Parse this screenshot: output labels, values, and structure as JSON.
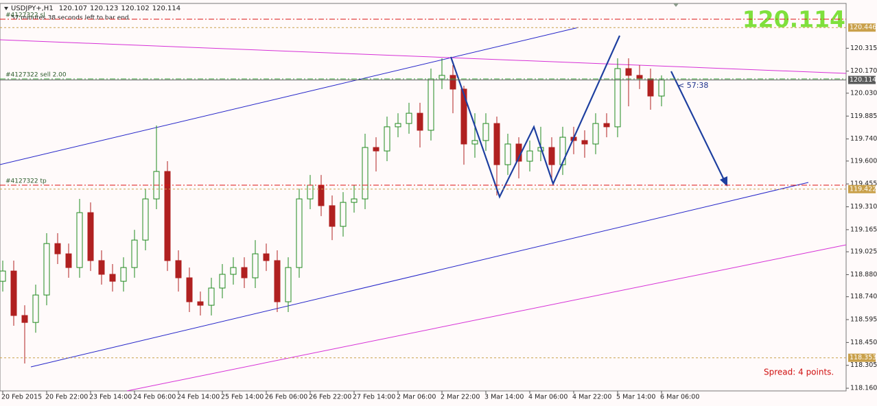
{
  "chart_data": {
    "type": "candlestick",
    "symbol": "USDJPY+,H1",
    "ohlc": [
      120.107,
      120.123,
      120.102,
      120.114
    ],
    "bid": 120.114,
    "x": [
      0,
      4,
      8,
      12,
      16,
      20,
      24,
      28,
      32,
      36,
      40,
      44,
      48,
      52,
      56,
      60,
      64,
      68,
      72,
      76,
      80,
      84,
      88,
      92,
      96,
      100,
      104,
      108,
      112,
      116,
      120,
      124,
      128,
      132,
      136,
      140,
      144,
      148,
      152,
      156,
      160,
      164,
      168,
      172,
      176,
      180,
      184,
      188,
      192,
      196,
      200,
      204,
      208,
      212,
      216,
      220,
      224,
      228,
      232,
      236,
      240
    ],
    "open": [
      118.838,
      118.903,
      118.621,
      118.577,
      118.751,
      119.077,
      119.012,
      118.925,
      119.273,
      118.969,
      118.882,
      118.838,
      118.925,
      119.099,
      119.36,
      119.534,
      118.969,
      118.86,
      118.708,
      118.686,
      118.795,
      118.882,
      118.925,
      118.86,
      119.012,
      118.969,
      118.708,
      118.925,
      119.36,
      119.447,
      119.317,
      119.186,
      119.338,
      119.36,
      119.686,
      119.664,
      119.817,
      119.838,
      119.903,
      119.795,
      120.121,
      120.143,
      120.056,
      119.708,
      119.73,
      119.838,
      119.577,
      119.708,
      119.599,
      119.664,
      119.686,
      119.577,
      119.751,
      119.73,
      119.708,
      119.838,
      119.817,
      120.186,
      120.143,
      120.121,
      120.012
    ],
    "high": [
      118.969,
      118.969,
      118.686,
      118.817,
      119.143,
      119.143,
      119.077,
      119.36,
      119.338,
      119.034,
      118.947,
      118.99,
      119.164,
      119.425,
      119.825,
      119.599,
      119.034,
      118.925,
      118.773,
      118.86,
      118.947,
      118.99,
      118.99,
      119.099,
      119.077,
      119.034,
      118.99,
      119.425,
      119.512,
      119.512,
      119.382,
      119.403,
      119.447,
      119.773,
      119.751,
      119.882,
      119.903,
      119.969,
      119.969,
      120.186,
      120.251,
      120.208,
      120.077,
      119.903,
      119.903,
      119.882,
      119.773,
      119.751,
      119.73,
      119.817,
      119.751,
      119.817,
      119.817,
      119.795,
      119.903,
      119.903,
      120.251,
      120.251,
      120.208,
      120.186,
      120.143
    ],
    "low": [
      118.773,
      118.556,
      118.317,
      118.512,
      118.686,
      118.947,
      118.86,
      118.86,
      118.903,
      118.817,
      118.773,
      118.773,
      118.86,
      119.034,
      119.295,
      118.903,
      118.773,
      118.643,
      118.621,
      118.621,
      118.73,
      118.817,
      118.795,
      118.795,
      118.903,
      118.643,
      118.643,
      118.86,
      119.295,
      119.251,
      119.099,
      119.121,
      119.273,
      119.295,
      119.534,
      119.599,
      119.751,
      119.773,
      119.686,
      119.73,
      120.056,
      119.903,
      119.577,
      119.621,
      119.664,
      119.382,
      119.512,
      119.49,
      119.534,
      119.599,
      119.469,
      119.512,
      119.643,
      119.621,
      119.643,
      119.751,
      119.751,
      119.947,
      120.056,
      119.925,
      119.947
    ],
    "close": [
      118.903,
      118.621,
      118.577,
      118.751,
      119.077,
      119.012,
      118.925,
      119.273,
      118.969,
      118.882,
      118.838,
      118.925,
      119.099,
      119.36,
      119.534,
      118.969,
      118.86,
      118.708,
      118.686,
      118.795,
      118.882,
      118.925,
      118.86,
      119.012,
      118.969,
      118.708,
      118.925,
      119.36,
      119.447,
      119.317,
      119.186,
      119.338,
      119.36,
      119.686,
      119.664,
      119.817,
      119.838,
      119.903,
      119.795,
      120.121,
      120.143,
      120.056,
      119.708,
      119.73,
      119.838,
      119.577,
      119.708,
      119.599,
      119.664,
      119.686,
      119.577,
      119.751,
      119.73,
      119.708,
      119.838,
      119.817,
      120.186,
      120.143,
      120.121,
      120.012,
      120.114
    ],
    "up_color": "#1f8a1f",
    "down_color": "#b02020",
    "xlim": [
      -1,
      307.25
    ],
    "xticks": [
      {
        "value": 0,
        "label": "20 Feb 2015"
      },
      {
        "value": 16,
        "label": "20 Feb 22:00"
      },
      {
        "value": 32,
        "label": "23 Feb 14:00"
      },
      {
        "value": 48,
        "label": "24 Feb 06:00"
      },
      {
        "value": 64,
        "label": "24 Feb 14:00"
      },
      {
        "value": 80,
        "label": "25 Feb 14:00"
      },
      {
        "value": 96,
        "label": "26 Feb 06:00"
      },
      {
        "value": 112,
        "label": "26 Feb 22:00"
      },
      {
        "value": 128,
        "label": "27 Feb 14:00"
      },
      {
        "value": 144,
        "label": "2 Mar 06:00"
      },
      {
        "value": 160,
        "label": "2 Mar 22:00"
      },
      {
        "value": 176,
        "label": "3 Mar 14:00"
      },
      {
        "value": 192,
        "label": "4 Mar 06:00"
      },
      {
        "value": 208,
        "label": "4 Mar 22:00"
      },
      {
        "value": 224,
        "label": "5 Mar 14:00"
      },
      {
        "value": 240,
        "label": "6 Mar 06:00"
      }
    ],
    "ylim": [
      118.143,
      120.599
    ],
    "yticks": [
      120.315,
      {
        "value": 120.17,
        "label": "120.170"
      },
      {
        "value": 120.03,
        "label": "120.030"
      },
      119.885,
      {
        "value": 119.74,
        "label": "119.740"
      },
      {
        "value": 119.6,
        "label": "119.600"
      },
      119.455,
      {
        "value": 119.31,
        "label": "119.310"
      },
      119.165,
      119.025,
      {
        "value": 118.88,
        "label": "118.880"
      },
      {
        "value": 118.74,
        "label": "118.740"
      },
      118.595,
      {
        "value": 118.45,
        "label": "118.450"
      },
      118.305,
      {
        "value": 118.16,
        "label": "118.160"
      }
    ],
    "levels": [
      {
        "value": 120.446,
        "color": "#c9a04a"
      },
      {
        "value": 120.114,
        "color": "#5a5a5a"
      },
      {
        "value": 119.422,
        "color": "#c9a04a"
      },
      {
        "value": 118.353,
        "color": "#c9a04a"
      }
    ],
    "orders": [
      {
        "label": "#4127322 sl",
        "value": 120.499,
        "color": "#dd1111"
      },
      {
        "label": "#4127322 sell 2.00",
        "value": 120.121,
        "color": "#3aa03a"
      },
      {
        "label": "#4127322 tp",
        "value": 119.447,
        "color": "#dd1111"
      }
    ],
    "timer_note": "57 minutes 38 seconds left to bar end",
    "countdown": "< 57:38",
    "spread": "Spread: 4 points."
  }
}
